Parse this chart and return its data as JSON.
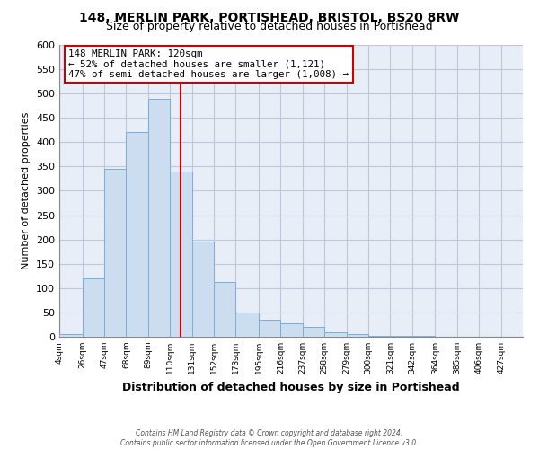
{
  "title": "148, MERLIN PARK, PORTISHEAD, BRISTOL, BS20 8RW",
  "subtitle": "Size of property relative to detached houses in Portishead",
  "xlabel": "Distribution of detached houses by size in Portishead",
  "ylabel": "Number of detached properties",
  "bar_color": "#ccddf0",
  "bar_edge_color": "#7aaed6",
  "bg_color": "#e8eef8",
  "grid_color": "#c0c8d8",
  "bin_labels": [
    "4sqm",
    "26sqm",
    "47sqm",
    "68sqm",
    "89sqm",
    "110sqm",
    "131sqm",
    "152sqm",
    "173sqm",
    "195sqm",
    "216sqm",
    "237sqm",
    "258sqm",
    "279sqm",
    "300sqm",
    "321sqm",
    "342sqm",
    "364sqm",
    "385sqm",
    "406sqm",
    "427sqm"
  ],
  "bin_edges": [
    4,
    26,
    47,
    68,
    89,
    110,
    131,
    152,
    173,
    195,
    216,
    237,
    258,
    279,
    300,
    321,
    342,
    364,
    385,
    406,
    427
  ],
  "bar_heights": [
    5,
    120,
    345,
    420,
    490,
    340,
    195,
    113,
    50,
    35,
    27,
    20,
    10,
    5,
    2,
    1,
    1,
    0,
    0,
    0
  ],
  "ylim": [
    0,
    600
  ],
  "yticks": [
    0,
    50,
    100,
    150,
    200,
    250,
    300,
    350,
    400,
    450,
    500,
    550,
    600
  ],
  "vline_x": 120,
  "vline_color": "#cc0000",
  "annotation_title": "148 MERLIN PARK: 120sqm",
  "annotation_line1": "← 52% of detached houses are smaller (1,121)",
  "annotation_line2": "47% of semi-detached houses are larger (1,008) →",
  "annotation_box_color": "#ffffff",
  "annotation_box_edge": "#cc0000",
  "footnote1": "Contains HM Land Registry data © Crown copyright and database right 2024.",
  "footnote2": "Contains public sector information licensed under the Open Government Licence v3.0."
}
